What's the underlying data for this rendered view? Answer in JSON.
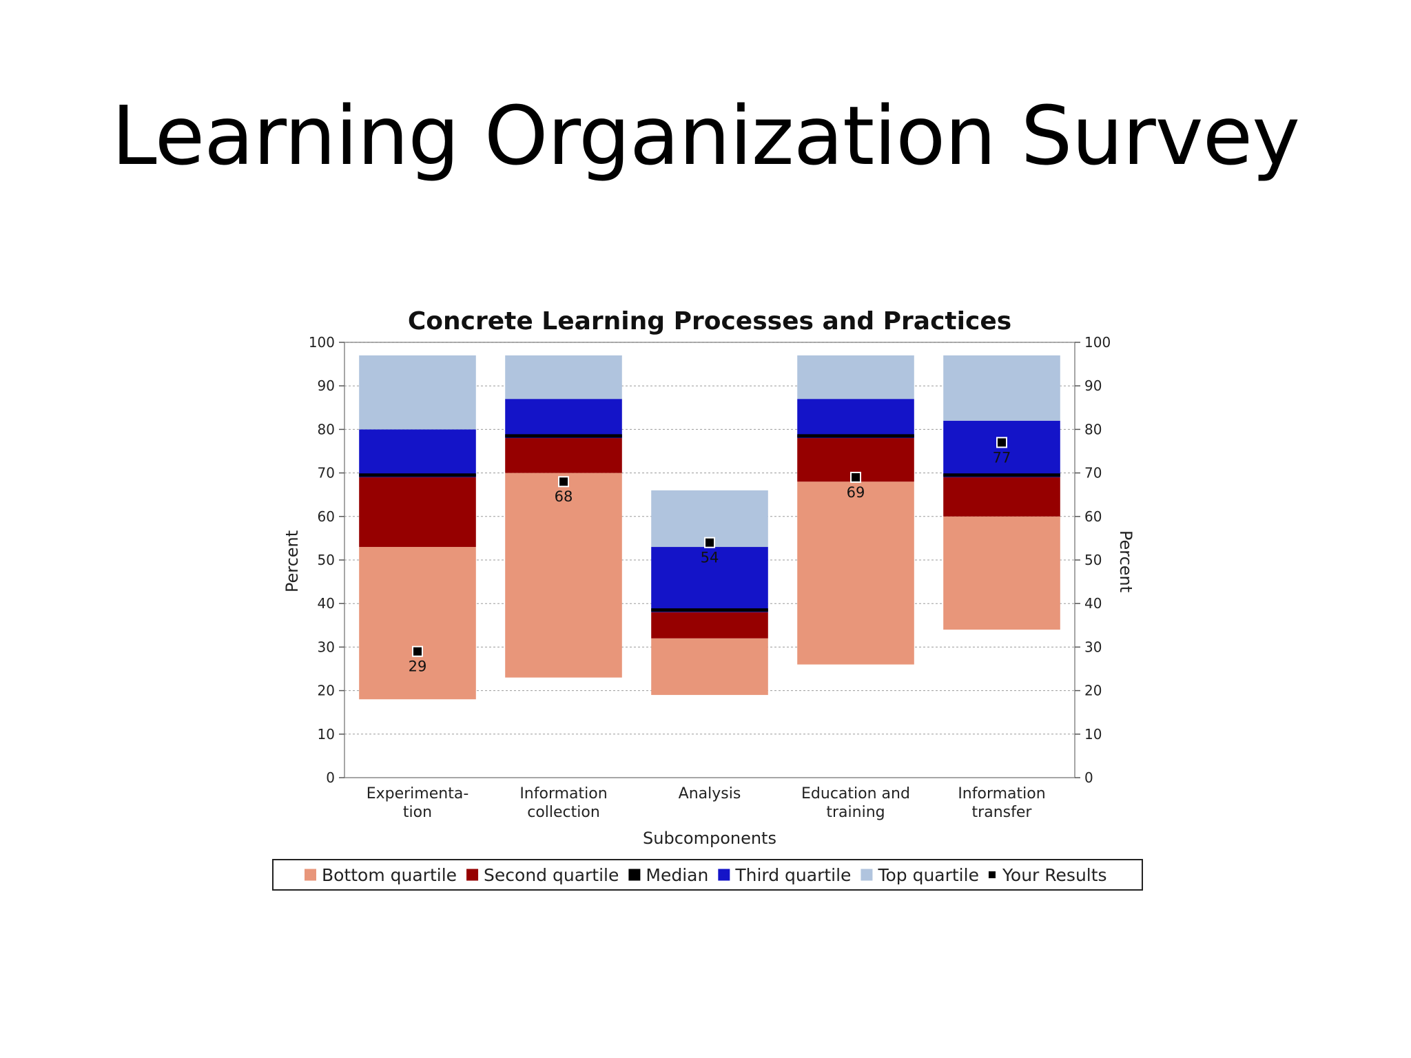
{
  "slide": {
    "title": "Learning Organization Survey"
  },
  "chart_data": {
    "type": "bar",
    "title": "Concrete Learning Processes and Practices",
    "xlabel": "Subcomponents",
    "ylabel": "Percent",
    "ylabel_right": "Percent",
    "ylim": [
      0,
      100
    ],
    "yticks": [
      0,
      10,
      20,
      30,
      40,
      50,
      60,
      70,
      80,
      90,
      100
    ],
    "grid": true,
    "legend_position": "bottom",
    "categories": [
      [
        "Experimenta-",
        "tion"
      ],
      [
        "Information",
        "collection"
      ],
      [
        "Analysis"
      ],
      [
        "Education and",
        "training"
      ],
      [
        "Information",
        "transfer"
      ]
    ],
    "series": [
      {
        "name": "Bottom quartile",
        "color": "#E8967A",
        "ranges": [
          [
            18,
            53
          ],
          [
            23,
            70
          ],
          [
            19,
            32
          ],
          [
            26,
            68
          ],
          [
            34,
            60
          ]
        ]
      },
      {
        "name": "Second quartile",
        "color": "#960000",
        "ranges": [
          [
            53,
            69
          ],
          [
            70,
            78
          ],
          [
            32,
            38
          ],
          [
            68,
            78
          ],
          [
            60,
            69
          ]
        ]
      },
      {
        "name": "Median",
        "color": "#000000",
        "values": [
          69.5,
          78.5,
          38.5,
          78.5,
          69.5
        ]
      },
      {
        "name": "Third quartile",
        "color": "#1414C8",
        "ranges": [
          [
            69,
            80
          ],
          [
            78,
            87
          ],
          [
            38,
            53
          ],
          [
            78,
            87
          ],
          [
            69,
            82
          ]
        ]
      },
      {
        "name": "Top quartile",
        "color": "#B0C4DE",
        "ranges": [
          [
            80,
            97
          ],
          [
            87,
            97
          ],
          [
            53,
            66
          ],
          [
            87,
            97
          ],
          [
            82,
            97
          ]
        ]
      },
      {
        "name": "Your Results",
        "color": "#000000",
        "values": [
          29,
          68,
          54,
          69,
          77
        ],
        "labels": [
          "29",
          "68",
          "54",
          "69",
          "77"
        ]
      }
    ]
  }
}
